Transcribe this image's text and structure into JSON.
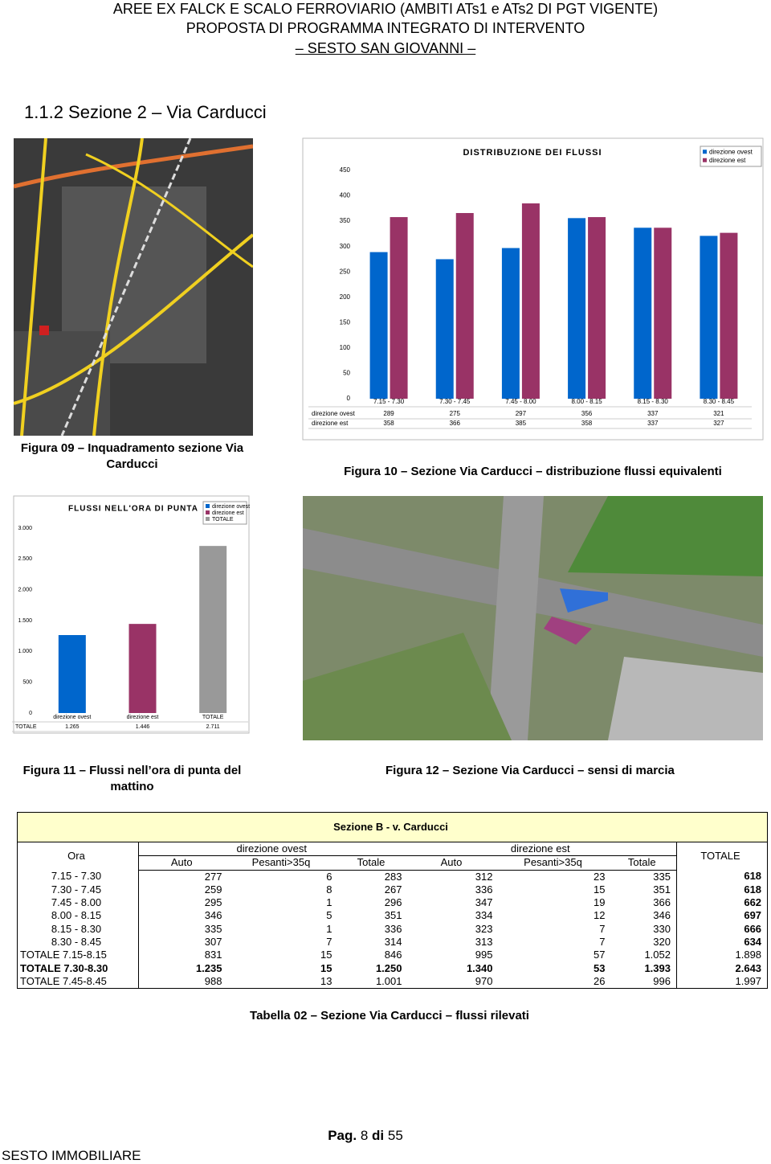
{
  "header": {
    "line1": "AREE EX FALCK E SCALO FERROVIARIO (AMBITI ATs1 e ATs2 DI PGT VIGENTE)",
    "line2": "PROPOSTA DI PROGRAMMA INTEGRATO DI INTERVENTO",
    "line3": "– SESTO SAN GIOVANNI –"
  },
  "section_title": "1.1.2 Sezione 2 – Via Carducci",
  "captions": {
    "fig09": "Figura 09 – Inquadramento sezione Via Carducci",
    "fig10": "Figura 10 – Sezione Via Carducci – distribuzione flussi equivalenti",
    "fig11": "Figura 11 – Flussi nell’ora di punta del mattino",
    "fig12": "Figura 12 – Sezione Via Carducci – sensi di marcia",
    "tab02": "Tabella 02 – Sezione Via Carducci – flussi rilevati"
  },
  "chart_data": [
    {
      "type": "bar",
      "title": "DISTRIBUZIONE DEI FLUSSI",
      "categories": [
        "7.15 - 7.30",
        "7.30 - 7.45",
        "7.45 - 8.00",
        "8.00 - 8.15",
        "8.15 - 8.30",
        "8.30 - 8.45"
      ],
      "series": [
        {
          "name": "direzione ovest",
          "color": "#0066cc",
          "values": [
            289,
            275,
            297,
            356,
            337,
            321
          ]
        },
        {
          "name": "direzione est",
          "color": "#993366",
          "values": [
            358,
            366,
            385,
            358,
            337,
            327
          ]
        }
      ],
      "ylim": [
        0,
        450
      ],
      "yticks": [
        0,
        50,
        100,
        150,
        200,
        250,
        300,
        350,
        400,
        450
      ],
      "grid": false,
      "legend": "top-right"
    },
    {
      "type": "bar",
      "title": "FLUSSI NELL'ORA DI PUNTA",
      "categories": [
        "direzione ovest",
        "direzione est",
        "TOTALE"
      ],
      "colors": [
        "#0066cc",
        "#993366",
        "#999999"
      ],
      "series": [
        {
          "name": "TOTALE",
          "values": [
            1265,
            1446,
            2711
          ],
          "value_labels": [
            "1.265",
            "1.446",
            "2.711"
          ]
        }
      ],
      "ylim": [
        0,
        3000
      ],
      "yticks": [
        0,
        500,
        {
          "value": 1000,
          "label": "1.000"
        },
        {
          "value": 1500,
          "label": "1.500"
        },
        {
          "value": 2000,
          "label": "2.000"
        },
        {
          "value": 2500,
          "label": "2.500"
        },
        {
          "value": 3000,
          "label": "3.000"
        }
      ],
      "grid": false,
      "legend": "top-right"
    }
  ],
  "table": {
    "title": "Sezione B - v. Carducci",
    "ora": "Ora",
    "groups": [
      "direzione ovest",
      "direzione est"
    ],
    "total": "TOTALE",
    "sub": [
      "Auto",
      "Pesanti>35q",
      "Totale",
      "Auto",
      "Pesanti>35q",
      "Totale"
    ],
    "rows": [
      [
        "7.15 - 7.30",
        "277",
        "6",
        "283",
        "312",
        "23",
        "335",
        "618"
      ],
      [
        "7.30 - 7.45",
        "259",
        "8",
        "267",
        "336",
        "15",
        "351",
        "618"
      ],
      [
        "7.45 - 8.00",
        "295",
        "1",
        "296",
        "347",
        "19",
        "366",
        "662"
      ],
      [
        "8.00 - 8.15",
        "346",
        "5",
        "351",
        "334",
        "12",
        "346",
        "697"
      ],
      [
        "8.15 - 8.30",
        "335",
        "1",
        "336",
        "323",
        "7",
        "330",
        "666"
      ],
      [
        "8.30 - 8.45",
        "307",
        "7",
        "314",
        "313",
        "7",
        "320",
        "634"
      ],
      [
        "TOTALE 7.15-8.15",
        "831",
        "15",
        "846",
        "995",
        "57",
        "1.052",
        "1.898"
      ],
      [
        "TOTALE 7.30-8.30",
        "1.235",
        "15",
        "1.250",
        "1.340",
        "53",
        "1.393",
        "2.643"
      ],
      [
        "TOTALE 7.45-8.45",
        "988",
        "13",
        "1.001",
        "970",
        "26",
        "996",
        "1.997"
      ]
    ]
  },
  "footer": {
    "page_label": "Pag.",
    "page_number": "8",
    "of": "di",
    "page_total": "55",
    "company": "SESTO IMMOBILIARE"
  }
}
